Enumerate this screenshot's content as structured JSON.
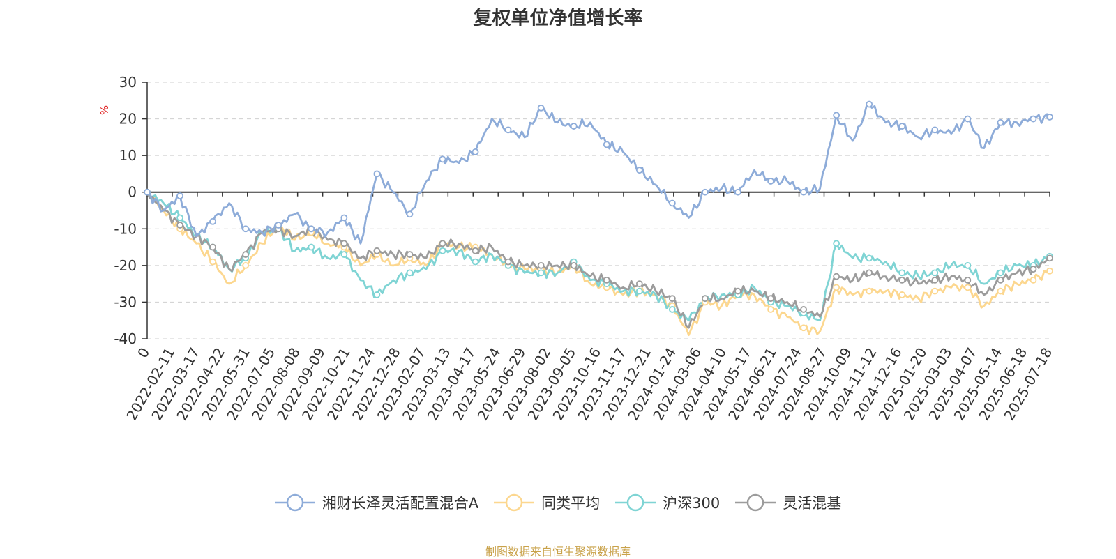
{
  "chart_data": {
    "type": "line",
    "title": "复权单位净值增长率",
    "ylabel": "%",
    "ylim": [
      -40,
      30
    ],
    "y_ticks": [
      "30",
      "20",
      "10",
      "0",
      "-10",
      "-20",
      "-30",
      "-40"
    ],
    "x_ticks": [
      "0",
      "2022-02-11",
      "2022-03-17",
      "2022-04-22",
      "2022-05-31",
      "2022-07-05",
      "2022-08-08",
      "2022-09-09",
      "2022-10-21",
      "2022-11-24",
      "2022-12-28",
      "2023-02-07",
      "2023-03-13",
      "2023-04-17",
      "2023-05-24",
      "2023-06-29",
      "2023-08-02",
      "2023-09-05",
      "2023-10-16",
      "2023-11-17",
      "2023-12-21",
      "2024-01-24",
      "2024-03-06",
      "2024-04-10",
      "2024-05-17",
      "2024-06-21",
      "2024-07-24",
      "2024-08-27",
      "2024-10-09",
      "2024-11-12",
      "2024-12-16",
      "2025-01-20",
      "2025-03-03",
      "2025-04-07",
      "2025-05-14",
      "2025-06-18",
      "2025-07-18"
    ],
    "grid": "horizontal-dashed",
    "legend_position": "bottom",
    "series": [
      {
        "name": "湘财长泽灵活配置混合A",
        "color": "#8eacd9",
        "values": [
          0,
          -5,
          -1,
          -12,
          -8,
          -3,
          -10,
          -11,
          -9,
          -6,
          -10,
          -11,
          -7,
          -14,
          5,
          0,
          -6,
          3,
          9,
          8,
          11,
          20,
          17,
          15,
          23,
          19,
          18,
          19,
          13,
          11,
          6,
          2,
          -3,
          -7,
          0,
          1,
          0,
          6,
          3,
          3,
          0,
          1,
          21,
          14,
          24,
          19,
          18,
          15,
          17,
          16,
          20,
          12,
          19,
          19,
          20,
          20.5
        ]
      },
      {
        "name": "同类平均",
        "color": "#fcd78f",
        "values": [
          0,
          -5,
          -10,
          -14,
          -19,
          -25,
          -20,
          -14,
          -9,
          -13,
          -11,
          -14,
          -15,
          -20,
          -17,
          -20,
          -18,
          -20,
          -14,
          -15,
          -15,
          -17,
          -20,
          -21,
          -21,
          -22,
          -20,
          -25,
          -26,
          -28,
          -27,
          -28,
          -31,
          -39,
          -30,
          -31,
          -28,
          -28,
          -32,
          -34,
          -37,
          -38,
          -26,
          -28,
          -27,
          -27,
          -28,
          -29,
          -27,
          -26,
          -26,
          -31,
          -27,
          -25,
          -24,
          -21.5
        ]
      },
      {
        "name": "沪深300",
        "color": "#7fd4d4",
        "values": [
          0,
          -3,
          -7,
          -12,
          -15,
          -21,
          -18,
          -11,
          -10,
          -16,
          -15,
          -18,
          -17,
          -24,
          -28,
          -24,
          -22,
          -21,
          -16,
          -16,
          -19,
          -17,
          -20,
          -22,
          -22,
          -22,
          -19,
          -24,
          -25,
          -27,
          -27,
          -28,
          -32,
          -35,
          -29,
          -28,
          -28,
          -26,
          -30,
          -31,
          -33,
          -35,
          -14,
          -18,
          -18,
          -19,
          -22,
          -23,
          -22,
          -20,
          -20,
          -25,
          -22,
          -20,
          -20,
          -17.5
        ]
      },
      {
        "name": "灵活混基",
        "color": "#9c9c9c",
        "values": [
          0,
          -5,
          -9,
          -12,
          -15,
          -21,
          -17,
          -11,
          -10,
          -12,
          -10,
          -13,
          -14,
          -18,
          -16,
          -17,
          -17,
          -18,
          -14,
          -14,
          -16,
          -15,
          -19,
          -20,
          -20,
          -20,
          -20,
          -23,
          -24,
          -26,
          -25,
          -27,
          -29,
          -37,
          -29,
          -29,
          -27,
          -27,
          -29,
          -30,
          -32,
          -34,
          -23,
          -24,
          -22,
          -23,
          -24,
          -25,
          -24,
          -23,
          -24,
          -28,
          -24,
          -22,
          -21,
          -18
        ]
      }
    ]
  },
  "source_text": "制图数据来自恒生聚源数据库"
}
